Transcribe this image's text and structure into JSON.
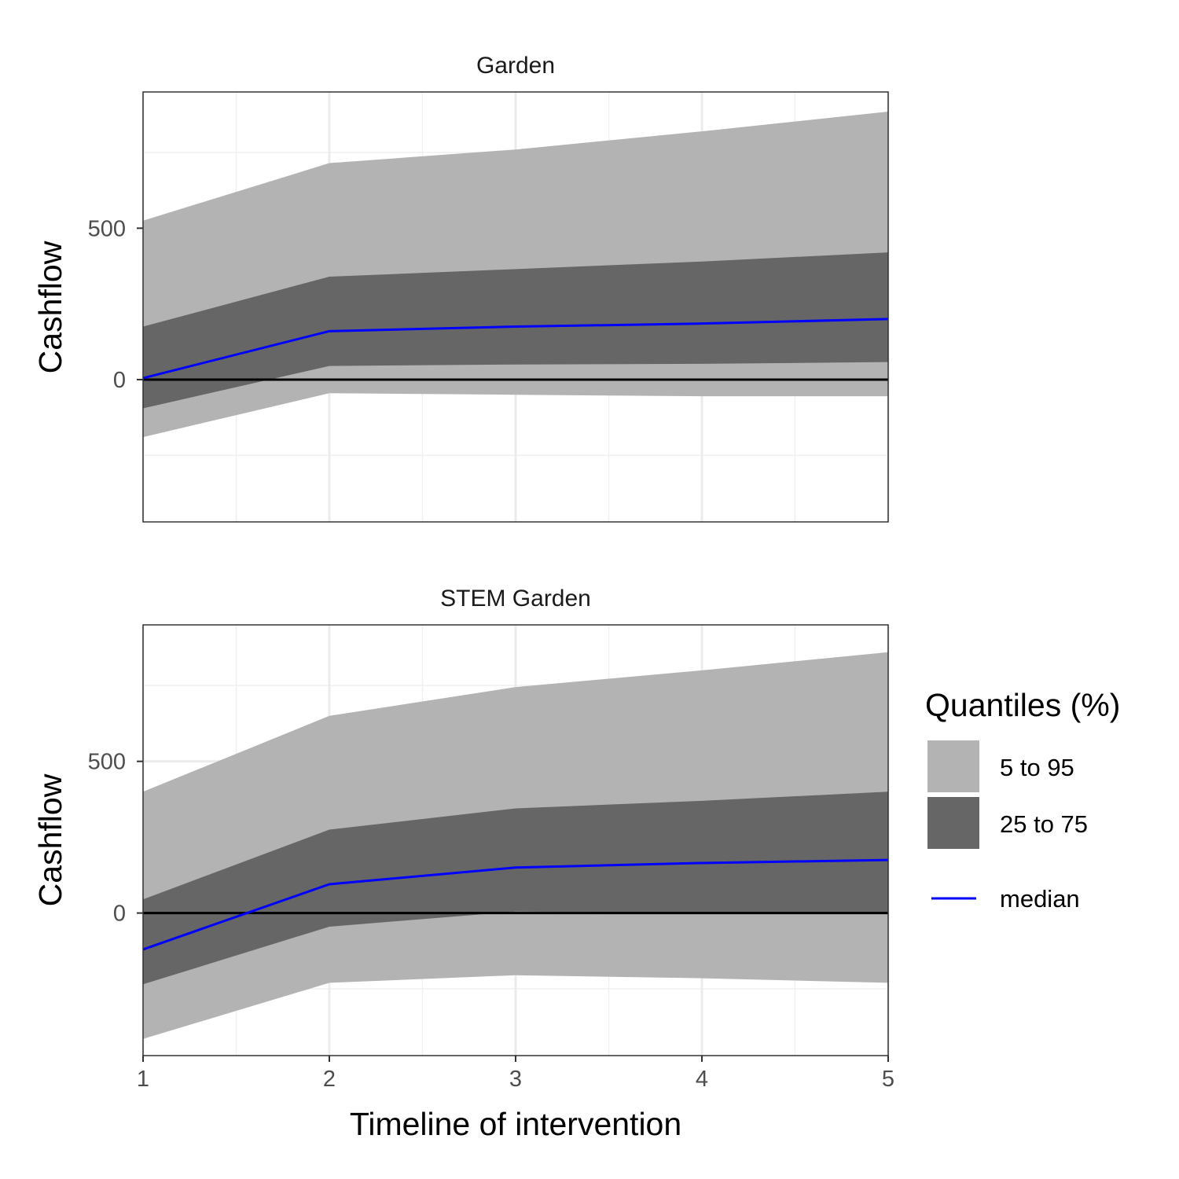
{
  "chart_data": {
    "type": "area",
    "xlabel": "Timeline of intervention",
    "ylabel": "Cashflow",
    "x": [
      1,
      2,
      3,
      4,
      5
    ],
    "x_ticks": [
      "1",
      "2",
      "3",
      "4",
      "5"
    ],
    "y_ticks": [
      "0",
      "500"
    ],
    "xlim": [
      1,
      5
    ],
    "ylim": [
      -470,
      950
    ],
    "grid": true,
    "legend": {
      "title": "Quantiles (%)",
      "position": "right",
      "entries": [
        {
          "key": "q5_95",
          "label": "5 to 95",
          "color": "#b3b3b3"
        },
        {
          "key": "q25_75",
          "label": "25 to 75",
          "color": "#666666"
        },
        {
          "key": "median",
          "label": "median",
          "color": "#0000ff"
        }
      ]
    },
    "panels": [
      {
        "title": "Garden",
        "q5": [
          -190,
          -45,
          -50,
          -55,
          -55
        ],
        "q95": [
          525,
          715,
          760,
          820,
          885
        ],
        "q25": [
          -95,
          45,
          50,
          52,
          58
        ],
        "q75": [
          175,
          340,
          365,
          390,
          420
        ],
        "median": [
          5,
          160,
          175,
          185,
          200
        ]
      },
      {
        "title": "STEM Garden",
        "q5": [
          -415,
          -230,
          -205,
          -215,
          -230
        ],
        "q95": [
          400,
          650,
          745,
          800,
          860
        ],
        "q25": [
          -235,
          -45,
          5,
          0,
          0
        ],
        "q75": [
          45,
          275,
          345,
          370,
          400
        ],
        "median": [
          -120,
          95,
          150,
          165,
          175
        ]
      }
    ]
  }
}
